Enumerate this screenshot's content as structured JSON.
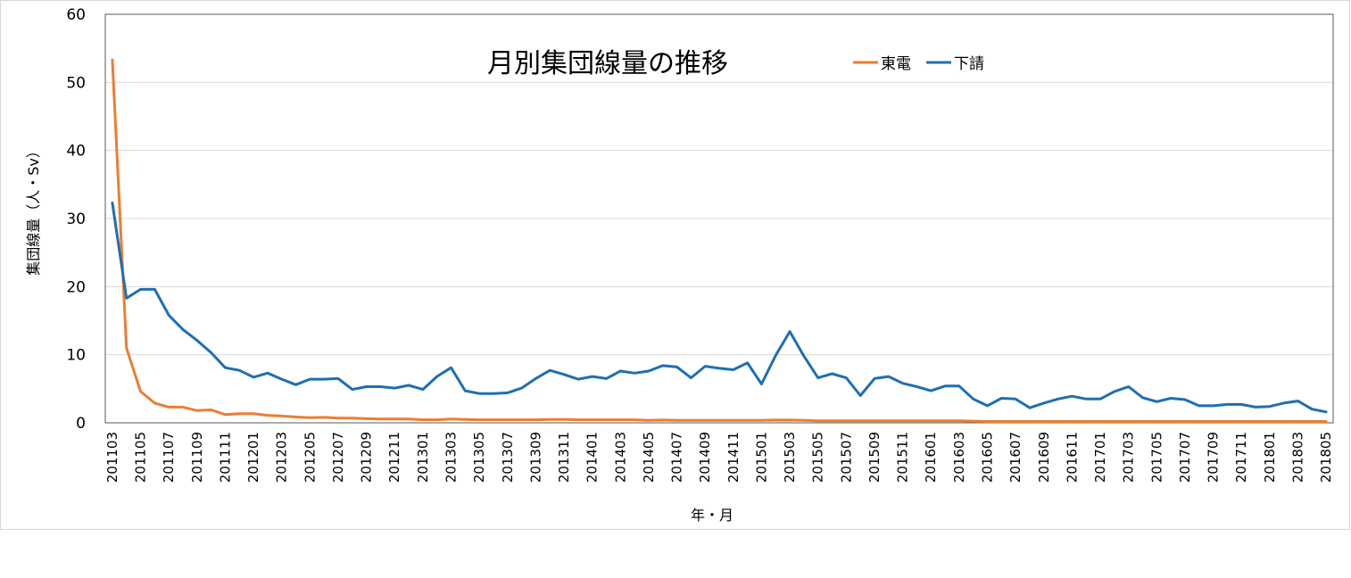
{
  "chart_data": {
    "type": "line",
    "title": "月別集団線量の推移",
    "xlabel": "年・月",
    "ylabel": "集団線量（人・Sv）",
    "ylim": [
      0,
      60
    ],
    "yticks": [
      "0",
      "10",
      "20",
      "30",
      "40",
      "50",
      "60"
    ],
    "grid": true,
    "legend_position": "top-right",
    "x": [
      "201103",
      "201104",
      "201105",
      "201106",
      "201107",
      "201108",
      "201109",
      "201110",
      "201111",
      "201112",
      "201201",
      "201202",
      "201203",
      "201204",
      "201205",
      "201206",
      "201207",
      "201208",
      "201209",
      "201210",
      "201211",
      "201212",
      "201301",
      "201302",
      "201303",
      "201304",
      "201305",
      "201306",
      "201307",
      "201308",
      "201309",
      "201310",
      "201311",
      "201312",
      "201401",
      "201402",
      "201403",
      "201404",
      "201405",
      "201406",
      "201407",
      "201408",
      "201409",
      "201410",
      "201411",
      "201412",
      "201501",
      "201502",
      "201503",
      "201504",
      "201505",
      "201506",
      "201507",
      "201508",
      "201509",
      "201510",
      "201511",
      "201512",
      "201601",
      "201602",
      "201603",
      "201604",
      "201605",
      "201606",
      "201607",
      "201608",
      "201609",
      "201610",
      "201611",
      "201612",
      "201701",
      "201702",
      "201703",
      "201704",
      "201705",
      "201706",
      "201707",
      "201708",
      "201709",
      "201710",
      "201711",
      "201712",
      "201801",
      "201802",
      "201803",
      "201804",
      "201805"
    ],
    "x_tick_labels": [
      "201103",
      "201105",
      "201107",
      "201109",
      "201111",
      "201201",
      "201203",
      "201205",
      "201207",
      "201209",
      "201211",
      "201301",
      "201303",
      "201305",
      "201307",
      "201309",
      "201311",
      "201401",
      "201403",
      "201405",
      "201407",
      "201409",
      "201411",
      "201501",
      "201503",
      "201505",
      "201507",
      "201509",
      "201511",
      "201601",
      "201603",
      "201605",
      "201607",
      "201609",
      "201611",
      "201701",
      "201703",
      "201705",
      "201707",
      "201709",
      "201711",
      "201801",
      "201803",
      "201805"
    ],
    "series": [
      {
        "name": "東電",
        "color": "#ED7D31",
        "values": [
          53.3,
          11.0,
          4.6,
          2.9,
          2.3,
          2.3,
          1.8,
          1.9,
          1.2,
          1.35,
          1.35,
          1.1,
          1.0,
          0.85,
          0.75,
          0.8,
          0.7,
          0.7,
          0.6,
          0.55,
          0.55,
          0.55,
          0.45,
          0.45,
          0.55,
          0.5,
          0.45,
          0.45,
          0.45,
          0.45,
          0.45,
          0.5,
          0.5,
          0.45,
          0.45,
          0.45,
          0.45,
          0.45,
          0.35,
          0.4,
          0.35,
          0.35,
          0.35,
          0.35,
          0.35,
          0.35,
          0.35,
          0.4,
          0.4,
          0.35,
          0.3,
          0.3,
          0.3,
          0.3,
          0.3,
          0.3,
          0.3,
          0.3,
          0.3,
          0.3,
          0.3,
          0.25,
          0.2,
          0.2,
          0.2,
          0.2,
          0.2,
          0.2,
          0.2,
          0.2,
          0.2,
          0.2,
          0.2,
          0.2,
          0.2,
          0.2,
          0.2,
          0.2,
          0.2,
          0.2,
          0.2,
          0.2,
          0.2,
          0.2,
          0.2,
          0.2,
          0.2
        ]
      },
      {
        "name": "下請",
        "color": "#1F6FB2",
        "values": [
          32.3,
          18.3,
          19.6,
          19.6,
          15.8,
          13.7,
          12.1,
          10.3,
          8.1,
          7.7,
          6.7,
          7.3,
          6.4,
          5.6,
          6.4,
          6.4,
          6.5,
          4.9,
          5.3,
          5.3,
          5.1,
          5.5,
          4.9,
          6.8,
          8.1,
          4.7,
          4.3,
          4.3,
          4.4,
          5.1,
          6.5,
          7.7,
          7.1,
          6.4,
          6.8,
          6.5,
          7.6,
          7.3,
          7.6,
          8.4,
          8.2,
          6.6,
          8.3,
          8.0,
          7.8,
          8.8,
          5.7,
          9.9,
          13.4,
          9.8,
          6.6,
          7.2,
          6.6,
          4.0,
          6.5,
          6.8,
          5.8,
          5.3,
          4.7,
          5.4,
          5.4,
          3.5,
          2.5,
          3.6,
          3.5,
          2.2,
          2.9,
          3.5,
          3.9,
          3.5,
          3.5,
          4.6,
          5.3,
          3.7,
          3.1,
          3.6,
          3.4,
          2.5,
          2.5,
          2.7,
          2.7,
          2.3,
          2.4,
          2.9,
          3.2,
          2.0,
          1.6
        ]
      }
    ]
  }
}
